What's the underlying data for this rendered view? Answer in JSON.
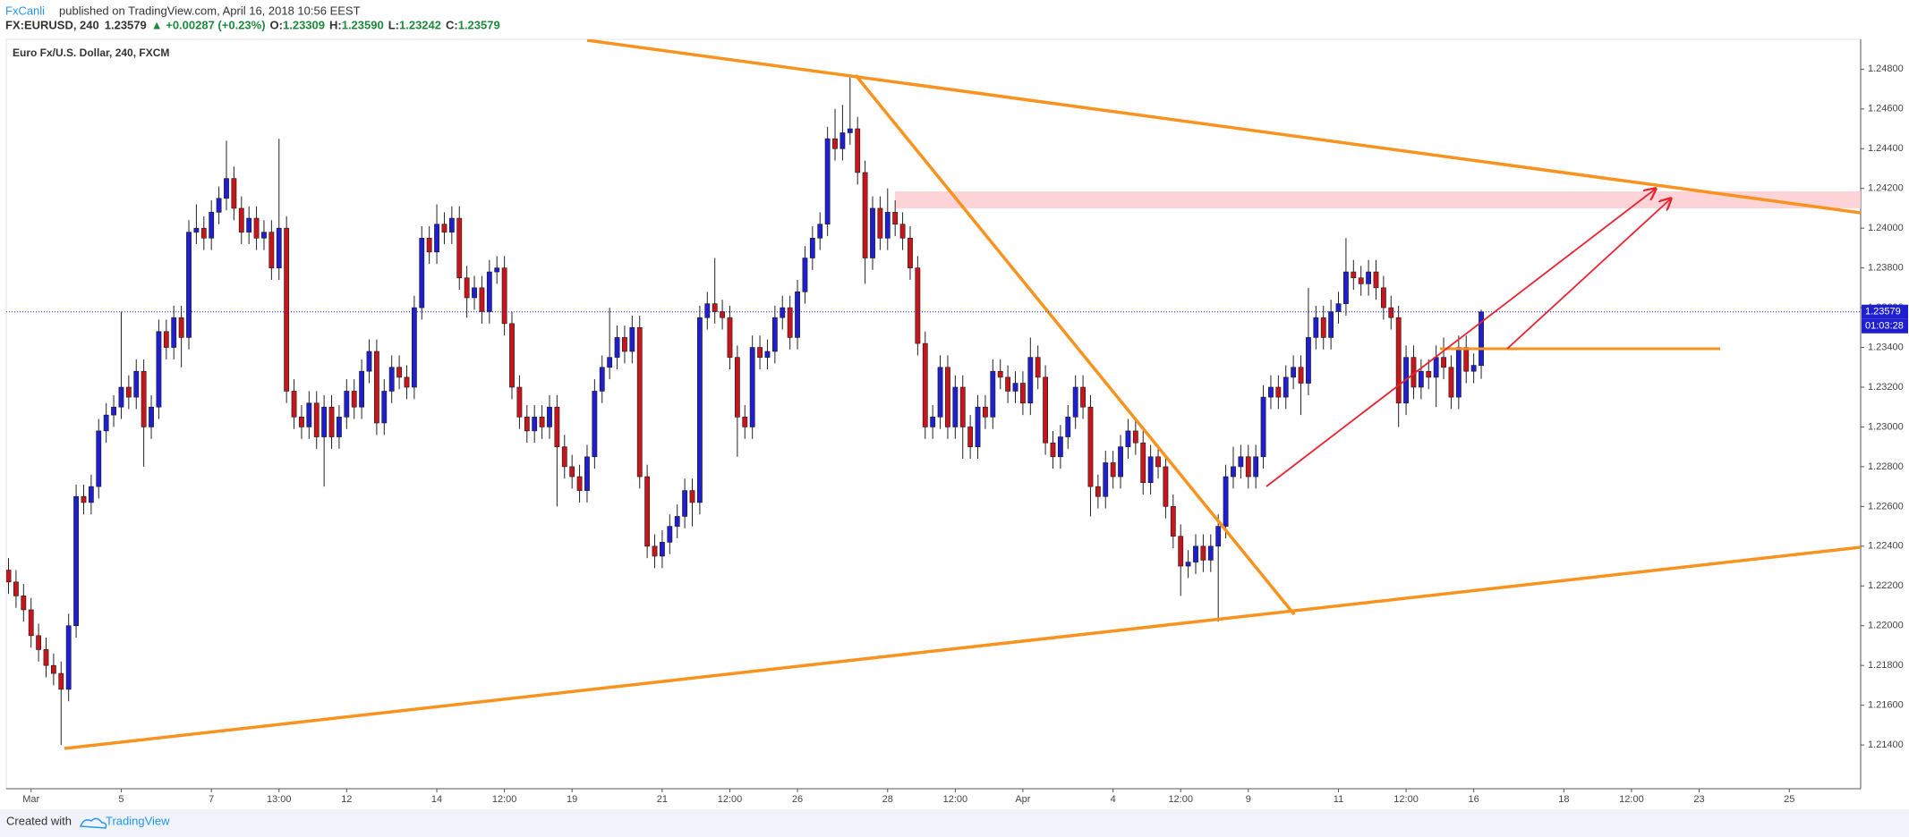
{
  "header": {
    "author": "FxCanli",
    "published": "published on TradingView.com, April 16, 2018 10:56 EEST",
    "symbol": "FX:EURUSD, 240",
    "last": "1.23579",
    "change": "▲ +0.00287 (+0.23%)",
    "ohlc": [
      {
        "label": "O:",
        "value": "1.23309"
      },
      {
        "label": "H:",
        "value": "1.23590"
      },
      {
        "label": "L:",
        "value": "1.23242"
      },
      {
        "label": "C:",
        "value": "1.23579"
      }
    ]
  },
  "footer": {
    "created": "Created with",
    "brand": "TradingView"
  },
  "chart_data": {
    "type": "candlestick",
    "title": "Euro Fx/U.S. Dollar, 240, FXCM",
    "up_color": "#1f1fcf",
    "down_color": "#c8151b",
    "wick_color": "#222222",
    "grid": false,
    "last_price_label": "1.23579",
    "countdown": "01:03:28",
    "xlim": [
      -0.3,
      246.5
    ],
    "ylim": [
      1.2118,
      1.2495
    ],
    "xticks": [
      {
        "value": 3,
        "label": "Mar"
      },
      {
        "value": 15,
        "label": "5"
      },
      {
        "value": 27,
        "label": "7"
      },
      {
        "value": 36,
        "label": "13:00"
      },
      {
        "value": 45,
        "label": "12"
      },
      {
        "value": 57,
        "label": "14"
      },
      {
        "value": 66,
        "label": "12:00"
      },
      {
        "value": 75,
        "label": "19"
      },
      {
        "value": 87,
        "label": "21"
      },
      {
        "value": 96,
        "label": "12:00"
      },
      {
        "value": 105,
        "label": "26"
      },
      {
        "value": 117,
        "label": "28"
      },
      {
        "value": 126,
        "label": "12:00"
      },
      {
        "value": 135,
        "label": "Apr"
      },
      {
        "value": 147,
        "label": "4"
      },
      {
        "value": 156,
        "label": "12:00"
      },
      {
        "value": 165,
        "label": "9"
      },
      {
        "value": 177,
        "label": "11"
      },
      {
        "value": 186,
        "label": "12:00"
      },
      {
        "value": 195,
        "label": "16"
      },
      {
        "value": 207,
        "label": "18"
      },
      {
        "value": 216,
        "label": "12:00"
      },
      {
        "value": 225,
        "label": "23"
      },
      {
        "value": 237,
        "label": "25"
      }
    ],
    "yticks": [
      {
        "value": 1.214,
        "label": "1.21400"
      },
      {
        "value": 1.216,
        "label": "1.21600"
      },
      {
        "value": 1.218,
        "label": "1.21800"
      },
      {
        "value": 1.22,
        "label": "1.22000"
      },
      {
        "value": 1.222,
        "label": "1.22200"
      },
      {
        "value": 1.224,
        "label": "1.22400"
      },
      {
        "value": 1.226,
        "label": "1.22600"
      },
      {
        "value": 1.228,
        "label": "1.22800"
      },
      {
        "value": 1.23,
        "label": "1.23000"
      },
      {
        "value": 1.232,
        "label": "1.23200"
      },
      {
        "value": 1.234,
        "label": "1.23400"
      },
      {
        "value": 1.236,
        "label": "1.23600"
      },
      {
        "value": 1.238,
        "label": "1.23800"
      },
      {
        "value": 1.24,
        "label": "1.24000"
      },
      {
        "value": 1.242,
        "label": "1.24200"
      },
      {
        "value": 1.244,
        "label": "1.24400"
      },
      {
        "value": 1.246,
        "label": "1.24600"
      },
      {
        "value": 1.248,
        "label": "1.24800"
      }
    ],
    "open": [
      1.2228,
      1.2222,
      1.2215,
      1.2208,
      1.2195,
      1.2188,
      1.218,
      1.2176,
      1.2168,
      1.22,
      1.2265,
      1.2262,
      1.227,
      1.2298,
      1.2306,
      1.231,
      1.232,
      1.2315,
      1.2328,
      1.23,
      1.231,
      1.2348,
      1.234,
      1.2355,
      1.2345,
      1.2398,
      1.24,
      1.2395,
      1.2408,
      1.2415,
      1.2425,
      1.241,
      1.2398,
      1.2405,
      1.2395,
      1.2398,
      1.238,
      1.24,
      1.2318,
      1.2305,
      1.23,
      1.2312,
      1.2295,
      1.231,
      1.2295,
      1.2305,
      1.2318,
      1.231,
      1.2328,
      1.2338,
      1.2302,
      1.2318,
      1.233,
      1.2325,
      1.232,
      1.236,
      1.2395,
      1.2388,
      1.2402,
      1.2398,
      1.2405,
      1.2375,
      1.2365,
      1.237,
      1.2358,
      1.2378,
      1.238,
      1.2352,
      1.232,
      1.2305,
      1.2298,
      1.2305,
      1.23,
      1.231,
      1.229,
      1.228,
      1.2275,
      1.2268,
      1.2285,
      1.2318,
      1.233,
      1.2335,
      1.2345,
      1.2338,
      1.235,
      1.2275,
      1.224,
      1.2235,
      1.2242,
      1.225,
      1.2255,
      1.2268,
      1.2262,
      1.2355,
      1.2362,
      1.2358,
      1.2355,
      1.2335,
      1.2305,
      1.23,
      1.234,
      1.2335,
      1.2338,
      1.2355,
      1.236,
      1.2345,
      1.2368,
      1.2385,
      1.2395,
      1.2402,
      1.2445,
      1.244,
      1.2448,
      1.245,
      1.2428,
      1.2385,
      1.241,
      1.2395,
      1.2408,
      1.2402,
      1.2395,
      1.238,
      1.2342,
      1.23,
      1.2305,
      1.233,
      1.23,
      1.232,
      1.23,
      1.229,
      1.231,
      1.2305,
      1.2328,
      1.2325,
      1.2318,
      1.2322,
      1.2312,
      1.2335,
      1.2325,
      1.2292,
      1.2285,
      1.2295,
      1.2305,
      1.232,
      1.231,
      1.227,
      1.2265,
      1.2282,
      1.2275,
      1.229,
      1.2298,
      1.2292,
      1.2272,
      1.2285,
      1.228,
      1.226,
      1.2245,
      1.223,
      1.2232,
      1.224,
      1.2233,
      1.224,
      1.225,
      1.2275,
      1.228,
      1.2285,
      1.2275,
      1.2285,
      1.2315,
      1.232,
      1.2315,
      1.2325,
      1.233,
      1.2322,
      1.2345,
      1.2355,
      1.2345,
      1.2358,
      1.2362,
      1.2378,
      1.2375,
      1.2372,
      1.2378,
      1.237,
      1.236,
      1.2355,
      1.2312,
      1.2335,
      1.232,
      1.2328,
      1.2325,
      1.2335,
      1.233,
      1.2315,
      1.234,
      1.2328,
      1.23309
    ],
    "high": [
      1.2234,
      1.2228,
      1.2221,
      1.2214,
      1.2201,
      1.2194,
      1.2186,
      1.2182,
      1.2206,
      1.2271,
      1.2271,
      1.2276,
      1.2304,
      1.2312,
      1.2316,
      1.2358,
      1.2326,
      1.2334,
      1.2334,
      1.2316,
      1.2354,
      1.2354,
      1.2361,
      1.2361,
      1.2404,
      1.2412,
      1.2406,
      1.2414,
      1.2421,
      1.2444,
      1.2431,
      1.2416,
      1.2411,
      1.2411,
      1.2404,
      1.2404,
      1.2445,
      1.2406,
      1.2324,
      1.2311,
      1.2318,
      1.2318,
      1.2316,
      1.2316,
      1.2311,
      1.2324,
      1.2324,
      1.2334,
      1.2344,
      1.2344,
      1.2324,
      1.2336,
      1.2336,
      1.2331,
      1.2366,
      1.2401,
      1.2401,
      1.2412,
      1.2408,
      1.2411,
      1.2411,
      1.2381,
      1.2376,
      1.2376,
      1.2384,
      1.2386,
      1.2386,
      1.2358,
      1.2326,
      1.2311,
      1.2311,
      1.2311,
      1.2316,
      1.2316,
      1.2296,
      1.2286,
      1.2281,
      1.2291,
      1.2324,
      1.2336,
      1.236,
      1.2351,
      1.2351,
      1.2356,
      1.2356,
      1.2281,
      1.2246,
      1.2248,
      1.2256,
      1.2261,
      1.2274,
      1.2274,
      1.2361,
      1.2368,
      1.2385,
      1.2364,
      1.2361,
      1.2341,
      1.2311,
      1.2346,
      1.2346,
      1.2344,
      1.2361,
      1.2366,
      1.2366,
      1.2374,
      1.2391,
      1.2401,
      1.2408,
      1.2451,
      1.246,
      1.2462,
      1.2476,
      1.2456,
      1.2434,
      1.2416,
      1.2416,
      1.242,
      1.2414,
      1.2408,
      1.2401,
      1.2386,
      1.2348,
      1.2311,
      1.2336,
      1.2336,
      1.2326,
      1.2326,
      1.2306,
      1.2316,
      1.2316,
      1.2334,
      1.2334,
      1.2331,
      1.2328,
      1.2328,
      1.2345,
      1.2341,
      1.2331,
      1.2298,
      1.2301,
      1.2311,
      1.2326,
      1.2326,
      1.2316,
      1.2276,
      1.2288,
      1.2288,
      1.2296,
      1.2304,
      1.2304,
      1.2298,
      1.2291,
      1.2291,
      1.2286,
      1.2266,
      1.2251,
      1.2238,
      1.2246,
      1.2246,
      1.2246,
      1.2256,
      1.2281,
      1.229,
      1.2291,
      1.2291,
      1.2291,
      1.2321,
      1.2326,
      1.2326,
      1.2331,
      1.2336,
      1.2336,
      1.237,
      1.2361,
      1.2361,
      1.2364,
      1.2368,
      1.2395,
      1.2384,
      1.2381,
      1.2384,
      1.2384,
      1.2376,
      1.2366,
      1.2361,
      1.2341,
      1.2341,
      1.2334,
      1.2334,
      1.2341,
      1.2345,
      1.2336,
      1.2346,
      1.2346,
      1.2337,
      1.2359
    ],
    "low": [
      1.2216,
      1.2209,
      1.2202,
      1.2189,
      1.2182,
      1.2174,
      1.217,
      1.214,
      1.2162,
      1.2194,
      1.2256,
      1.2256,
      1.2264,
      1.2292,
      1.23,
      1.2304,
      1.2309,
      1.2309,
      1.228,
      1.2294,
      1.2304,
      1.2334,
      1.2334,
      1.233,
      1.2339,
      1.2392,
      1.2389,
      1.2389,
      1.2402,
      1.2409,
      1.2404,
      1.2392,
      1.2392,
      1.2389,
      1.2389,
      1.2374,
      1.2374,
      1.2312,
      1.2299,
      1.2294,
      1.2294,
      1.2289,
      1.227,
      1.2289,
      1.2289,
      1.2299,
      1.2304,
      1.2304,
      1.2322,
      1.2296,
      1.2296,
      1.2312,
      1.2319,
      1.2314,
      1.2314,
      1.2354,
      1.2382,
      1.2382,
      1.2392,
      1.2392,
      1.2369,
      1.2355,
      1.2359,
      1.2352,
      1.2352,
      1.2372,
      1.2346,
      1.2314,
      1.2299,
      1.2292,
      1.2292,
      1.2294,
      1.2294,
      1.226,
      1.2274,
      1.2269,
      1.2262,
      1.2262,
      1.2279,
      1.2312,
      1.2324,
      1.2329,
      1.2332,
      1.2332,
      1.2269,
      1.2234,
      1.2229,
      1.2229,
      1.2236,
      1.2244,
      1.2249,
      1.225,
      1.2256,
      1.2349,
      1.2352,
      1.2349,
      1.2329,
      1.2285,
      1.2294,
      1.2294,
      1.2329,
      1.2329,
      1.2332,
      1.2349,
      1.2339,
      1.2339,
      1.2362,
      1.2379,
      1.2389,
      1.2396,
      1.2434,
      1.2434,
      1.2442,
      1.2422,
      1.2372,
      1.2379,
      1.2389,
      1.2389,
      1.2396,
      1.2389,
      1.2374,
      1.2336,
      1.2294,
      1.2294,
      1.2299,
      1.2294,
      1.2294,
      1.2284,
      1.2284,
      1.2284,
      1.2299,
      1.2299,
      1.2319,
      1.2312,
      1.2312,
      1.2306,
      1.2306,
      1.2319,
      1.2286,
      1.2279,
      1.2279,
      1.2289,
      1.2299,
      1.2304,
      1.2255,
      1.2259,
      1.2259,
      1.2269,
      1.2269,
      1.2284,
      1.2286,
      1.2266,
      1.2266,
      1.2274,
      1.2254,
      1.2239,
      1.2215,
      1.2224,
      1.2226,
      1.2227,
      1.2227,
      1.2202,
      1.2244,
      1.2269,
      1.2274,
      1.2269,
      1.2269,
      1.2279,
      1.2309,
      1.2309,
      1.2309,
      1.2319,
      1.2306,
      1.2316,
      1.2339,
      1.2339,
      1.2339,
      1.2352,
      1.2356,
      1.2369,
      1.2366,
      1.2366,
      1.2364,
      1.2354,
      1.2349,
      1.23,
      1.2306,
      1.2314,
      1.2314,
      1.2319,
      1.231,
      1.2324,
      1.2309,
      1.2309,
      1.2322,
      1.2322,
      1.23242
    ],
    "close": [
      1.2222,
      1.2215,
      1.2208,
      1.2195,
      1.2188,
      1.218,
      1.2176,
      1.2168,
      1.22,
      1.2265,
      1.2262,
      1.227,
      1.2298,
      1.2306,
      1.231,
      1.232,
      1.2315,
      1.2328,
      1.23,
      1.231,
      1.2348,
      1.234,
      1.2355,
      1.2345,
      1.2398,
      1.24,
      1.2395,
      1.2408,
      1.2415,
      1.2425,
      1.241,
      1.2398,
      1.2405,
      1.2395,
      1.2398,
      1.238,
      1.24,
      1.2318,
      1.2305,
      1.23,
      1.2312,
      1.2295,
      1.231,
      1.2295,
      1.2305,
      1.2318,
      1.231,
      1.2328,
      1.2338,
      1.2302,
      1.2318,
      1.233,
      1.2325,
      1.232,
      1.236,
      1.2395,
      1.2388,
      1.2402,
      1.2398,
      1.2405,
      1.2375,
      1.2365,
      1.237,
      1.2358,
      1.2378,
      1.238,
      1.2352,
      1.232,
      1.2305,
      1.2298,
      1.2305,
      1.23,
      1.231,
      1.229,
      1.228,
      1.2275,
      1.2268,
      1.2285,
      1.2318,
      1.233,
      1.2335,
      1.2345,
      1.2338,
      1.235,
      1.2275,
      1.224,
      1.2235,
      1.2242,
      1.225,
      1.2255,
      1.2268,
      1.2262,
      1.2355,
      1.2362,
      1.2358,
      1.2355,
      1.2335,
      1.2305,
      1.23,
      1.234,
      1.2335,
      1.2338,
      1.2355,
      1.236,
      1.2345,
      1.2368,
      1.2385,
      1.2395,
      1.2402,
      1.2445,
      1.244,
      1.2448,
      1.245,
      1.2428,
      1.2385,
      1.241,
      1.2395,
      1.2408,
      1.2402,
      1.2395,
      1.238,
      1.2342,
      1.23,
      1.2305,
      1.233,
      1.23,
      1.232,
      1.23,
      1.229,
      1.231,
      1.2305,
      1.2328,
      1.2325,
      1.2318,
      1.2322,
      1.2312,
      1.2335,
      1.2325,
      1.2292,
      1.2285,
      1.2295,
      1.2305,
      1.232,
      1.231,
      1.227,
      1.2265,
      1.2282,
      1.2275,
      1.229,
      1.2298,
      1.2292,
      1.2272,
      1.2285,
      1.228,
      1.226,
      1.2245,
      1.223,
      1.2232,
      1.224,
      1.2233,
      1.224,
      1.225,
      1.2275,
      1.228,
      1.2285,
      1.2275,
      1.2285,
      1.2315,
      1.232,
      1.2315,
      1.2325,
      1.233,
      1.2322,
      1.2345,
      1.2355,
      1.2345,
      1.2358,
      1.2362,
      1.2378,
      1.2375,
      1.2372,
      1.2378,
      1.237,
      1.236,
      1.2355,
      1.2312,
      1.2335,
      1.232,
      1.2328,
      1.2325,
      1.2335,
      1.233,
      1.2315,
      1.234,
      1.2328,
      1.2331,
      1.23579
    ]
  }
}
